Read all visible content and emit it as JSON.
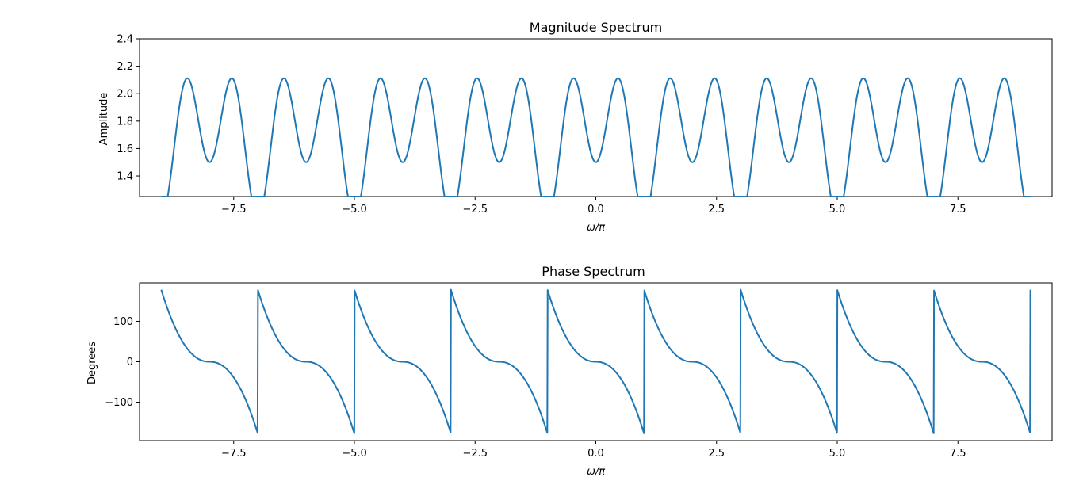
{
  "chart_data": [
    {
      "type": "line",
      "title": "Magnitude Spectrum",
      "xlabel": "ω/π",
      "ylabel": "Amplitude",
      "xlim": [
        -9.45,
        9.45
      ],
      "ylim": [
        1.25,
        2.4
      ],
      "xticks": [
        -7.5,
        -5.0,
        -2.5,
        0.0,
        2.5,
        5.0,
        7.5
      ],
      "xtick_labels": [
        "−7.5",
        "−5.0",
        "−2.5",
        "0.0",
        "2.5",
        "5.0",
        "7.5"
      ],
      "yticks": [
        1.4,
        1.6,
        1.8,
        2.0,
        2.2,
        2.4
      ],
      "ytick_labels": [
        "1.4",
        "1.6",
        "1.8",
        "2.0",
        "2.2",
        "2.4"
      ],
      "grid": false,
      "series": [
        {
          "function": "magnitude",
          "x_range": [
            -9,
            9
          ],
          "color": "#1f77b4"
        }
      ]
    },
    {
      "type": "line",
      "title": "Phase Spectrum",
      "xlabel": "ω/π",
      "ylabel": "Degrees",
      "xlim": [
        -9.45,
        9.45
      ],
      "ylim": [
        -195,
        195
      ],
      "xticks": [
        -7.5,
        -5.0,
        -2.5,
        0.0,
        2.5,
        5.0,
        7.5
      ],
      "xtick_labels": [
        "−7.5",
        "−5.0",
        "−2.5",
        "0.0",
        "2.5",
        "5.0",
        "7.5"
      ],
      "yticks": [
        -100,
        0,
        100
      ],
      "ytick_labels": [
        "−100",
        "0",
        "100"
      ],
      "grid": false,
      "series": [
        {
          "function": "phase",
          "x_range": [
            -9,
            9
          ],
          "color": "#1f77b4"
        }
      ]
    }
  ]
}
